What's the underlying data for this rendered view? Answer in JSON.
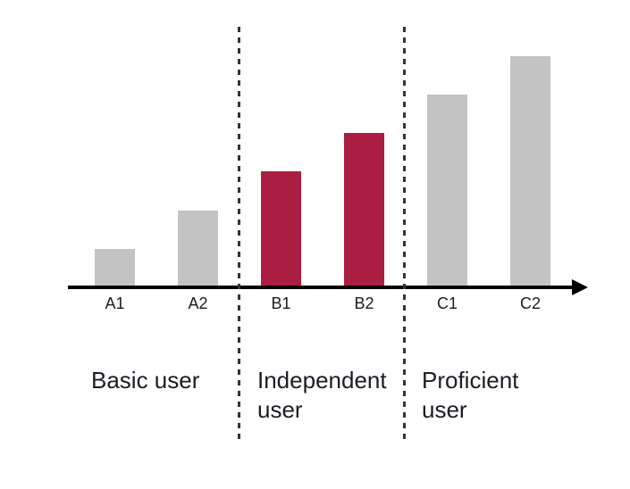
{
  "chart_data": {
    "type": "bar",
    "title": "",
    "xlabel": "",
    "ylabel": "",
    "categories": [
      "A1",
      "A2",
      "B1",
      "B2",
      "C1",
      "C2"
    ],
    "values": [
      1,
      2,
      3,
      4,
      5,
      6
    ],
    "values_note": "relative bar heights; y-axis has no scale, bars rise in equal steps",
    "bar_colors": [
      "#c3c3c3",
      "#c3c3c3",
      "#ab1e42",
      "#ab1e42",
      "#c3c3c3",
      "#c3c3c3"
    ],
    "highlighted_categories": [
      "B1",
      "B2"
    ],
    "axis": {
      "style": "horizontal-arrow",
      "color": "#000000"
    },
    "separators": {
      "style": "dashed",
      "count": 2,
      "color": "#333333"
    },
    "groups": [
      {
        "label": "Basic user",
        "categories": [
          "A1",
          "A2"
        ]
      },
      {
        "label": "Independent user",
        "categories": [
          "B1",
          "B2"
        ]
      },
      {
        "label": "Proficient user",
        "categories": [
          "C1",
          "C2"
        ]
      }
    ],
    "legend": null,
    "grid": false
  },
  "colors": {
    "background": "#ffffff",
    "bar_default": "#c3c3c3",
    "bar_highlight": "#ab1e42",
    "axis": "#000000",
    "text": "#1c1c26"
  }
}
